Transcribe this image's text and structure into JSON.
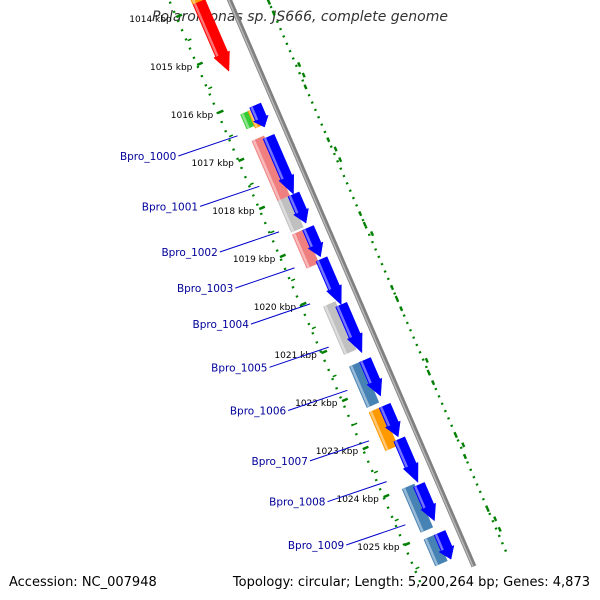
{
  "title": "Polaromonas sp. JS666, complete genome",
  "footer": {
    "accession": "Accession: NC_007948",
    "summary": "Topology: circular; Length: 5,200,264 bp; Genes: 4,873"
  },
  "axis": {
    "unit": "kbp",
    "ticks": [
      {
        "kbp": 1014,
        "label": "1014 kbp"
      },
      {
        "kbp": 1015,
        "label": "1015 kbp"
      },
      {
        "kbp": 1016,
        "label": "1016 kbp"
      },
      {
        "kbp": 1017,
        "label": "1017 kbp"
      },
      {
        "kbp": 1018,
        "label": "1018 kbp"
      },
      {
        "kbp": 1019,
        "label": "1019 kbp"
      },
      {
        "kbp": 1020,
        "label": "1020 kbp"
      },
      {
        "kbp": 1021,
        "label": "1021 kbp"
      },
      {
        "kbp": 1022,
        "label": "1022 kbp"
      },
      {
        "kbp": 1023,
        "label": "1023 kbp"
      },
      {
        "kbp": 1024,
        "label": "1024 kbp"
      },
      {
        "kbp": 1025,
        "label": "1025 kbp"
      }
    ]
  },
  "gene_labels": [
    {
      "name": "Bpro_1000",
      "kbp": 1016.55
    },
    {
      "name": "Bpro_1001",
      "kbp": 1017.6
    },
    {
      "name": "Bpro_1002",
      "kbp": 1018.55
    },
    {
      "name": "Bpro_1003",
      "kbp": 1019.3
    },
    {
      "name": "Bpro_1004",
      "kbp": 1020.05
    },
    {
      "name": "Bpro_1005",
      "kbp": 1020.95
    },
    {
      "name": "Bpro_1006",
      "kbp": 1021.85
    },
    {
      "name": "Bpro_1007",
      "kbp": 1022.9
    },
    {
      "name": "Bpro_1008",
      "kbp": 1023.75
    },
    {
      "name": "Bpro_1009",
      "kbp": 1024.65
    }
  ],
  "features": [
    {
      "ring": "cog",
      "start": 1013.5,
      "end": 1015.35,
      "color": "#ff0000",
      "arrow": true
    },
    {
      "ring": "cog",
      "start": 1013.6,
      "end": 1013.9,
      "color": "#ff9900",
      "arrow": false
    },
    {
      "ring": "cog",
      "start": 1016.2,
      "end": 1016.5,
      "color": "#33cc33",
      "arrow": false
    },
    {
      "ring": "cog",
      "start": 1016.2,
      "end": 1016.55,
      "color": "#ff9900",
      "arrow": false,
      "offset": 8
    },
    {
      "ring": "cds",
      "start": 1016.15,
      "end": 1016.6,
      "color": "#0000ff",
      "arrow": true
    },
    {
      "ring": "cog",
      "start": 1016.75,
      "end": 1018.0,
      "color": "#f08080",
      "arrow": false
    },
    {
      "ring": "cds",
      "start": 1016.8,
      "end": 1018.0,
      "color": "#0000ff",
      "arrow": true
    },
    {
      "ring": "cog",
      "start": 1018.0,
      "end": 1018.65,
      "color": "#c0c0c0",
      "arrow": false
    },
    {
      "ring": "cds",
      "start": 1018.0,
      "end": 1018.6,
      "color": "#0000ff",
      "arrow": true
    },
    {
      "ring": "cog",
      "start": 1018.7,
      "end": 1019.4,
      "color": "#f08080",
      "arrow": false
    },
    {
      "ring": "cds",
      "start": 1018.7,
      "end": 1019.3,
      "color": "#0000ff",
      "arrow": true
    },
    {
      "ring": "cds",
      "start": 1019.35,
      "end": 1020.3,
      "color": "#0000ff",
      "arrow": true
    },
    {
      "ring": "cog",
      "start": 1020.2,
      "end": 1021.2,
      "color": "#c0c0c0",
      "arrow": false
    },
    {
      "ring": "cds",
      "start": 1020.3,
      "end": 1021.3,
      "color": "#0000ff",
      "arrow": true
    },
    {
      "ring": "cog",
      "start": 1021.45,
      "end": 1022.3,
      "color": "#4682b4",
      "arrow": false
    },
    {
      "ring": "cds",
      "start": 1021.45,
      "end": 1022.2,
      "color": "#0000ff",
      "arrow": true
    },
    {
      "ring": "cog",
      "start": 1022.4,
      "end": 1023.2,
      "color": "#ff9900",
      "arrow": false
    },
    {
      "ring": "cds",
      "start": 1022.4,
      "end": 1023.05,
      "color": "#0000ff",
      "arrow": true
    },
    {
      "ring": "cds",
      "start": 1023.1,
      "end": 1024.0,
      "color": "#0000ff",
      "arrow": true
    },
    {
      "ring": "cog",
      "start": 1024.0,
      "end": 1024.9,
      "color": "#4682b4",
      "arrow": false
    },
    {
      "ring": "cds",
      "start": 1024.05,
      "end": 1024.8,
      "color": "#0000ff",
      "arrow": true
    },
    {
      "ring": "cog",
      "start": 1025.05,
      "end": 1025.6,
      "color": "#4682b4",
      "arrow": false
    },
    {
      "ring": "cds",
      "start": 1025.05,
      "end": 1025.6,
      "color": "#0000ff",
      "arrow": true
    }
  ],
  "colors": {
    "backbone": "#808080",
    "gc_ring": "#008000",
    "label_line": "#0000cc"
  }
}
